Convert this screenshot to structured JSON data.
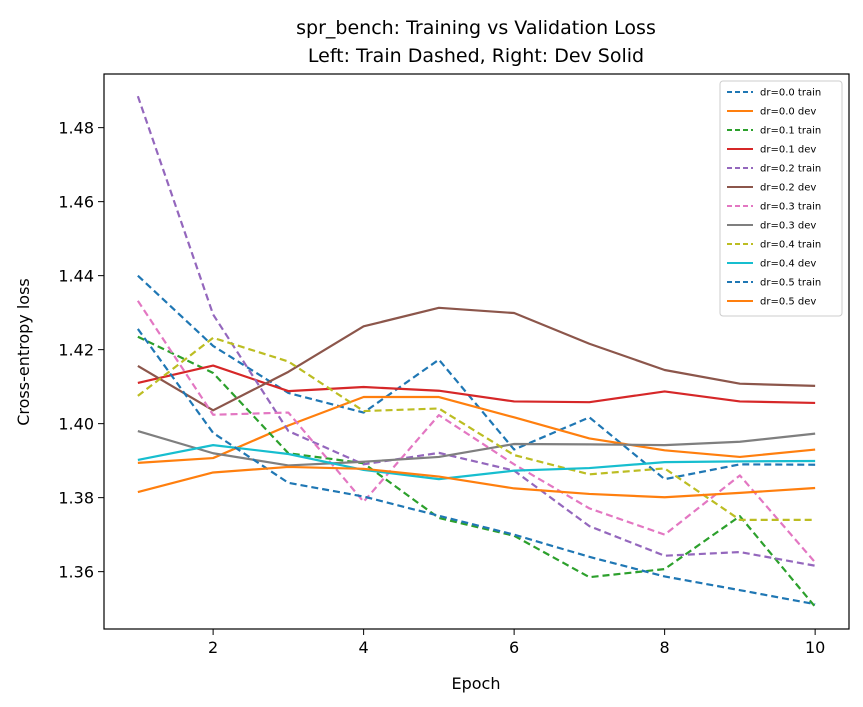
{
  "chart_data": {
    "type": "line",
    "title_line1": "spr_bench: Training vs Validation Loss",
    "title_line2": "Left: Train Dashed, Right: Dev Solid",
    "xlabel": "Epoch",
    "ylabel": "Cross-entropy loss",
    "x": [
      1,
      2,
      3,
      4,
      5,
      6,
      7,
      8,
      9,
      10
    ],
    "xlim": [
      0.55,
      10.45
    ],
    "ylim": [
      1.3445,
      1.4945
    ],
    "xticks": [
      2,
      4,
      6,
      8,
      10
    ],
    "xtick_labels": [
      "2",
      "4",
      "6",
      "8",
      "10"
    ],
    "yticks": [
      1.36,
      1.38,
      1.4,
      1.42,
      1.44,
      1.46,
      1.48
    ],
    "ytick_labels": [
      "1.36",
      "1.38",
      "1.40",
      "1.42",
      "1.44",
      "1.46",
      "1.48"
    ],
    "grid": false,
    "legend_position": "top-right",
    "series": [
      {
        "name": "dr=0.0 train",
        "style": "dashed",
        "color": "#1f77b4",
        "values": [
          1.44,
          1.421,
          1.4083,
          1.403,
          1.4173,
          1.393,
          1.4017,
          1.385,
          1.389,
          1.3889
        ]
      },
      {
        "name": "dr=0.0 dev",
        "style": "solid",
        "color": "#ff7f0e",
        "values": [
          1.3894,
          1.3907,
          1.3995,
          1.4072,
          1.4072,
          1.4017,
          1.396,
          1.3928,
          1.391,
          1.393
        ]
      },
      {
        "name": "dr=0.1 train",
        "style": "dashed",
        "color": "#2ca02c",
        "values": [
          1.4235,
          1.4137,
          1.392,
          1.3893,
          1.3745,
          1.3697,
          1.3585,
          1.3607,
          1.375,
          1.3505
        ]
      },
      {
        "name": "dr=0.1 dev",
        "style": "solid",
        "color": "#d62728",
        "values": [
          1.411,
          1.4157,
          1.4088,
          1.4099,
          1.4089,
          1.406,
          1.4058,
          1.4087,
          1.406,
          1.4056
        ]
      },
      {
        "name": "dr=0.2 train",
        "style": "dashed",
        "color": "#9467bd",
        "values": [
          1.4885,
          1.4295,
          1.398,
          1.389,
          1.3921,
          1.3873,
          1.3723,
          1.3643,
          1.3653,
          1.3616
        ]
      },
      {
        "name": "dr=0.2 dev",
        "style": "solid",
        "color": "#8c564b",
        "values": [
          1.4156,
          1.4036,
          1.414,
          1.4263,
          1.4313,
          1.4299,
          1.4216,
          1.4145,
          1.4108,
          1.4102
        ]
      },
      {
        "name": "dr=0.3 train",
        "style": "dashed",
        "color": "#e377c2",
        "values": [
          1.4332,
          1.4024,
          1.403,
          1.3789,
          1.4023,
          1.389,
          1.3771,
          1.37,
          1.386,
          1.3625
        ]
      },
      {
        "name": "dr=0.3 dev",
        "style": "solid",
        "color": "#7f7f7f",
        "values": [
          1.398,
          1.392,
          1.3887,
          1.3897,
          1.391,
          1.3945,
          1.3944,
          1.3942,
          1.3951,
          1.3973
        ]
      },
      {
        "name": "dr=0.4 train",
        "style": "dashed",
        "color": "#bcbd22",
        "values": [
          1.4075,
          1.4232,
          1.4168,
          1.4034,
          1.4041,
          1.3915,
          1.3863,
          1.3879,
          1.374,
          1.374
        ]
      },
      {
        "name": "dr=0.4 dev",
        "style": "solid",
        "color": "#17becf",
        "values": [
          1.3902,
          1.3942,
          1.3918,
          1.3875,
          1.385,
          1.3873,
          1.388,
          1.3896,
          1.3898,
          1.3899
        ]
      },
      {
        "name": "dr=0.5 train",
        "style": "dashed",
        "color": "#1f77b4",
        "values": [
          1.4256,
          1.3975,
          1.384,
          1.3803,
          1.3751,
          1.37,
          1.364,
          1.3587,
          1.355,
          1.3512
        ]
      },
      {
        "name": "dr=0.5 dev",
        "style": "solid",
        "color": "#ff7f0e",
        "values": [
          1.3815,
          1.3868,
          1.3883,
          1.3878,
          1.3857,
          1.3825,
          1.381,
          1.3801,
          1.3813,
          1.3826
        ]
      }
    ]
  }
}
